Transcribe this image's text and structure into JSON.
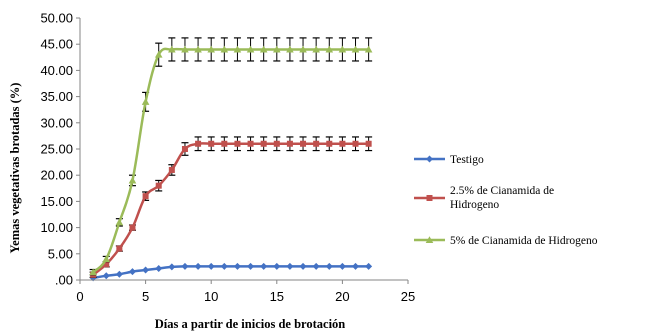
{
  "chart_data": {
    "type": "line",
    "xlabel": "Días a partir de inicios de brotación",
    "ylabel": "Yemas vegetativas brotadas (%)",
    "xlim": [
      0,
      25
    ],
    "ylim": [
      0,
      50
    ],
    "xticks": [
      "0",
      "5",
      "10",
      "15",
      "20",
      "25"
    ],
    "yticks": [
      ".00",
      "5.00",
      "10.00",
      "15.00",
      "20.00",
      "25.00",
      "30.00",
      "35.00",
      "40.00",
      "45.00",
      "50.00"
    ],
    "grid": false,
    "legend_position": "right",
    "series": [
      {
        "name": "Testigo",
        "color": "#4472C4",
        "marker": "diamond",
        "error_bars": false,
        "x": [
          1,
          2,
          3,
          4,
          5,
          6,
          7,
          8,
          9,
          10,
          11,
          12,
          13,
          14,
          15,
          16,
          17,
          18,
          19,
          20,
          21,
          22
        ],
        "y": [
          0.4,
          0.8,
          1.1,
          1.6,
          1.9,
          2.2,
          2.5,
          2.6,
          2.6,
          2.6,
          2.6,
          2.6,
          2.6,
          2.6,
          2.6,
          2.6,
          2.6,
          2.6,
          2.6,
          2.6,
          2.6,
          2.6
        ]
      },
      {
        "name": "2.5% de Cianamida de Hidrogeno",
        "legend_lines": [
          "2.5% de Cianamida de",
          "Hidrogeno"
        ],
        "color": "#C0504D",
        "marker": "square",
        "error_bars": true,
        "x": [
          1,
          2,
          3,
          4,
          5,
          6,
          7,
          8,
          9,
          10,
          11,
          12,
          13,
          14,
          15,
          16,
          17,
          18,
          19,
          20,
          21,
          22
        ],
        "y": [
          1.0,
          3.0,
          6.0,
          10.0,
          16.0,
          18.0,
          21.0,
          25.0,
          26.0,
          26.0,
          26.0,
          26.0,
          26.0,
          26.0,
          26.0,
          26.0,
          26.0,
          26.0,
          26.0,
          26.0,
          26.0,
          26.0
        ],
        "err": [
          0.5,
          0.5,
          0.5,
          0.5,
          0.8,
          1.0,
          1.0,
          1.2,
          1.3,
          1.3,
          1.3,
          1.3,
          1.3,
          1.3,
          1.3,
          1.3,
          1.3,
          1.3,
          1.3,
          1.3,
          1.3,
          1.3
        ]
      },
      {
        "name": "5% de Cianamida de Hidrogeno",
        "color": "#9BBB59",
        "marker": "triangle",
        "error_bars": true,
        "x": [
          1,
          2,
          3,
          4,
          5,
          6,
          7,
          8,
          9,
          10,
          11,
          12,
          13,
          14,
          15,
          16,
          17,
          18,
          19,
          20,
          21,
          22
        ],
        "y": [
          1.5,
          4.0,
          11.0,
          19.0,
          34.0,
          43.0,
          44.0,
          44.0,
          44.0,
          44.0,
          44.0,
          44.0,
          44.0,
          44.0,
          44.0,
          44.0,
          44.0,
          44.0,
          44.0,
          44.0,
          44.0,
          44.0
        ],
        "err": [
          0.5,
          0.5,
          0.7,
          1.0,
          1.8,
          2.2,
          2.2,
          2.2,
          2.2,
          2.2,
          2.2,
          2.2,
          2.2,
          2.2,
          2.2,
          2.2,
          2.2,
          2.2,
          2.2,
          2.2,
          2.2,
          2.2
        ]
      }
    ]
  }
}
